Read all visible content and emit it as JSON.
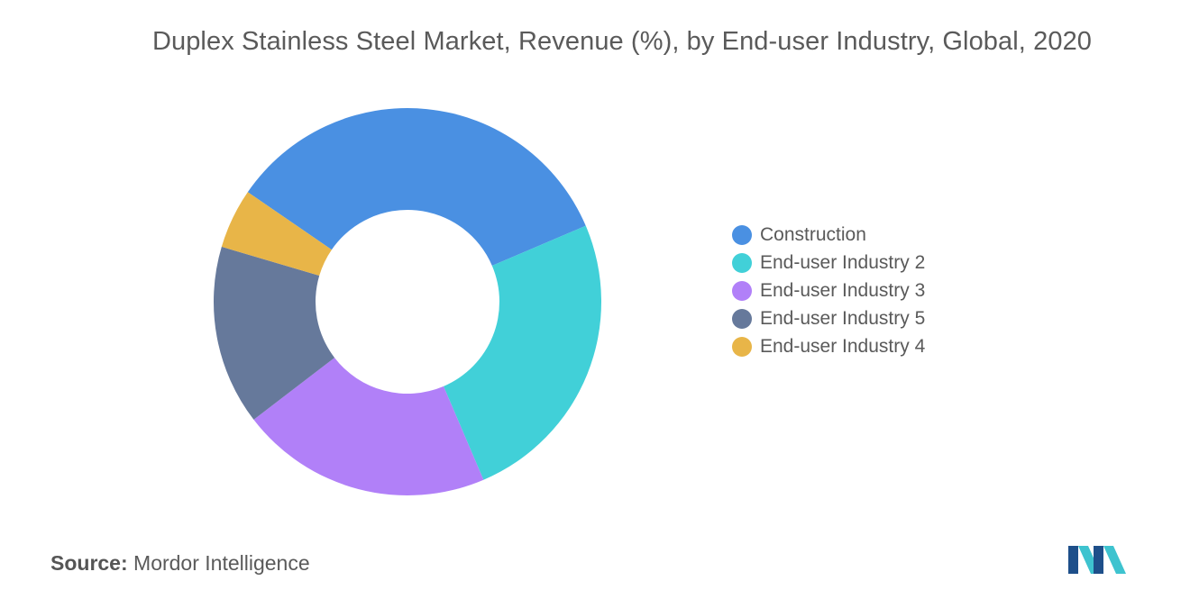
{
  "chart_data": {
    "type": "pie",
    "title": "Duplex Stainless Steel Market, Revenue (%), by End-user Industry, Global, 2020",
    "categories": [
      "Construction",
      "End-user Industry 2",
      "End-user Industry 3",
      "End-user Industry 5",
      "End-user Industry 4"
    ],
    "values": [
      34,
      25,
      21,
      15,
      5
    ],
    "colors": [
      "#4a90e2",
      "#41d0d8",
      "#b180f8",
      "#66799b",
      "#e8b548"
    ],
    "legend_placement": "right",
    "donut": true
  },
  "source": {
    "label": "Source:",
    "text": "Mordor Intelligence"
  },
  "logo": {
    "icon": "mordor-intelligence-logo",
    "colors": [
      "#1e4f8a",
      "#3ec3cf"
    ]
  }
}
